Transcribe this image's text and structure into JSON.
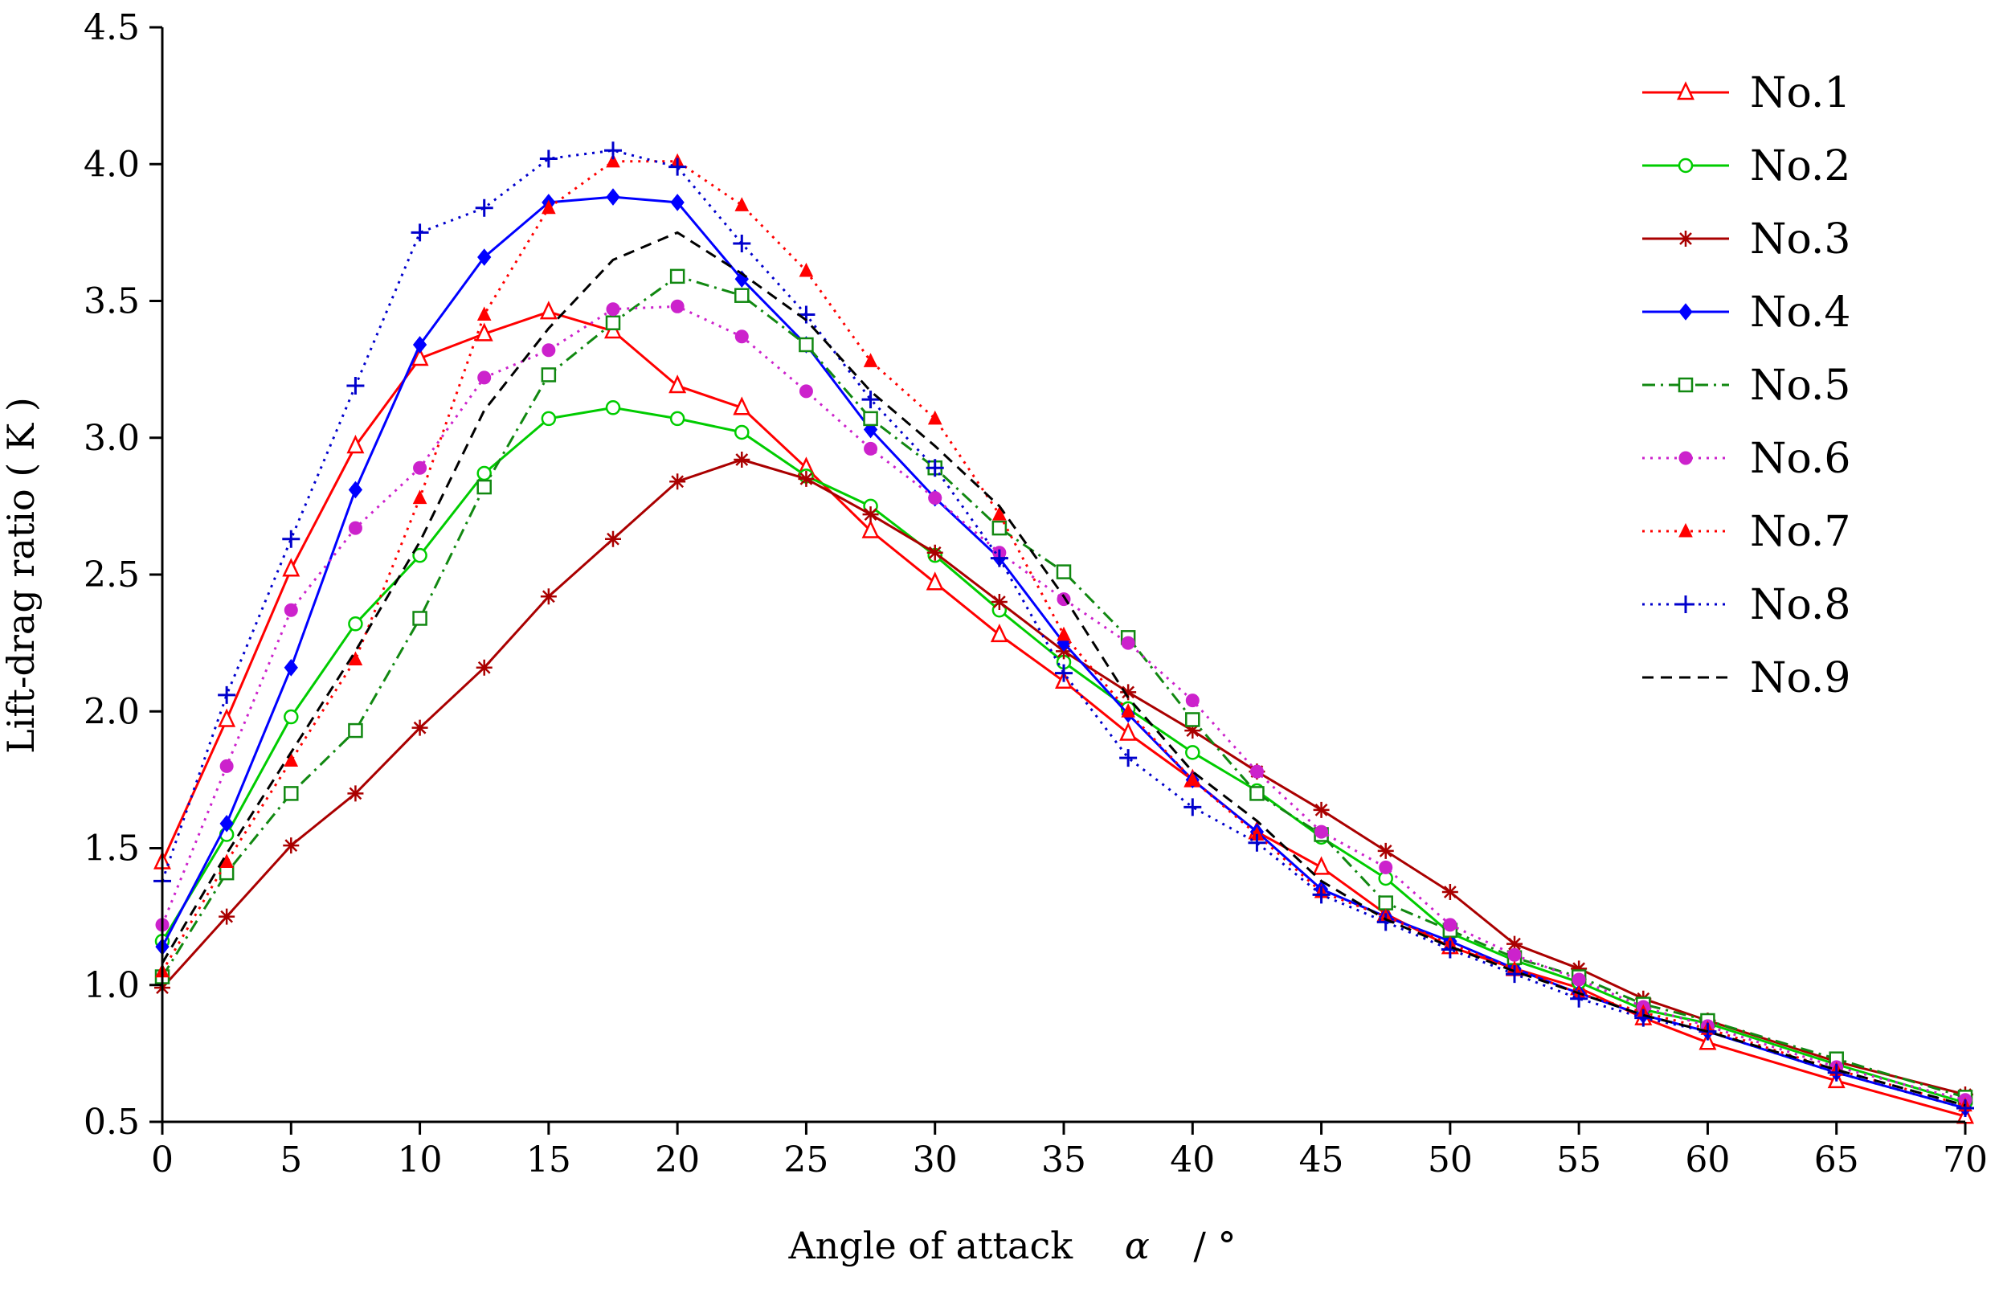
{
  "chart_data": {
    "type": "line",
    "title": "",
    "xlabel": "Angle of attack",
    "xlabel_symbol": "α",
    "xlabel_unit": "/ °",
    "ylabel": "Lift-drag ratio ( K )",
    "xlim": [
      0,
      70
    ],
    "ylim": [
      0.5,
      4.5
    ],
    "xticks": [
      0,
      5,
      10,
      15,
      20,
      25,
      30,
      35,
      40,
      45,
      50,
      55,
      60,
      65,
      70
    ],
    "xtick_labels": [
      "0",
      "5",
      "10",
      "15",
      "20",
      "25",
      "30",
      "35",
      "40",
      "45",
      "50",
      "55",
      "60",
      "65",
      "70"
    ],
    "yticks": [
      0.5,
      1.0,
      1.5,
      2.0,
      2.5,
      3.0,
      3.5,
      4.0,
      4.5
    ],
    "ytick_labels": [
      "0.5",
      "1.0",
      "1.5",
      "2.0",
      "2.5",
      "3.0",
      "3.5",
      "4.0",
      "4.5"
    ],
    "legend_position": "top-right",
    "x": [
      0,
      2.5,
      5,
      7.5,
      10,
      12.5,
      15,
      17.5,
      20,
      22.5,
      25,
      27.5,
      30,
      32.5,
      35,
      37.5,
      40,
      42.5,
      45,
      47.5,
      50,
      52.5,
      55,
      57.5,
      60,
      65,
      70
    ],
    "series": [
      {
        "name": "No.1",
        "color": "#ff0000",
        "dash": "solid",
        "marker": "triangle-open",
        "values": [
          1.45,
          1.97,
          2.52,
          2.97,
          3.29,
          3.38,
          3.46,
          3.39,
          3.19,
          3.11,
          2.89,
          2.66,
          2.47,
          2.28,
          2.11,
          1.92,
          1.75,
          1.56,
          1.43,
          1.26,
          1.14,
          1.06,
          0.99,
          0.88,
          0.79,
          0.65,
          0.52
        ]
      },
      {
        "name": "No.2",
        "color": "#00cc00",
        "dash": "solid",
        "marker": "circle-open",
        "values": [
          1.16,
          1.55,
          1.98,
          2.32,
          2.57,
          2.87,
          3.07,
          3.11,
          3.07,
          3.02,
          2.86,
          2.75,
          2.57,
          2.37,
          2.18,
          2.01,
          1.85,
          1.71,
          1.54,
          1.39,
          1.19,
          1.09,
          1.01,
          0.91,
          0.86,
          0.71,
          0.57
        ]
      },
      {
        "name": "No.3",
        "color": "#aa0000",
        "dash": "solid",
        "marker": "asterisk",
        "values": [
          0.99,
          1.25,
          1.51,
          1.7,
          1.94,
          2.16,
          2.42,
          2.63,
          2.84,
          2.92,
          2.85,
          2.72,
          2.58,
          2.4,
          2.22,
          2.07,
          1.93,
          1.78,
          1.64,
          1.49,
          1.34,
          1.15,
          1.06,
          0.95,
          0.87,
          0.72,
          0.6
        ]
      },
      {
        "name": "No.4",
        "color": "#0000ff",
        "dash": "solid",
        "marker": "diamond-filled",
        "values": [
          1.14,
          1.59,
          2.16,
          2.81,
          3.34,
          3.66,
          3.86,
          3.88,
          3.86,
          3.58,
          3.34,
          3.03,
          2.78,
          2.56,
          2.25,
          1.99,
          1.75,
          1.56,
          1.35,
          1.25,
          1.16,
          1.06,
          0.97,
          0.89,
          0.83,
          0.68,
          0.55
        ]
      },
      {
        "name": "No.5",
        "color": "#118811",
        "dash": "dashdot",
        "marker": "square-open",
        "values": [
          1.03,
          1.41,
          1.7,
          1.93,
          2.34,
          2.82,
          3.23,
          3.42,
          3.59,
          3.52,
          3.34,
          3.07,
          2.89,
          2.67,
          2.51,
          2.27,
          1.97,
          1.7,
          1.55,
          1.3,
          1.2,
          1.1,
          1.03,
          0.93,
          0.87,
          0.73,
          0.59
        ]
      },
      {
        "name": "No.6",
        "color": "#cc22cc",
        "dash": "dot",
        "marker": "circle-filled",
        "values": [
          1.22,
          1.8,
          2.37,
          2.67,
          2.89,
          3.22,
          3.32,
          3.47,
          3.48,
          3.37,
          3.17,
          2.96,
          2.78,
          2.58,
          2.41,
          2.25,
          2.04,
          1.78,
          1.56,
          1.43,
          1.22,
          1.11,
          1.02,
          0.92,
          0.85,
          0.7,
          0.58
        ]
      },
      {
        "name": "No.7",
        "color": "#ff0000",
        "dash": "dot",
        "marker": "triangle-filled",
        "values": [
          1.05,
          1.45,
          1.82,
          2.19,
          2.78,
          3.45,
          3.84,
          4.01,
          4.01,
          3.85,
          3.61,
          3.28,
          3.07,
          2.72,
          2.28,
          2.0,
          1.75,
          1.55,
          1.34,
          1.25,
          1.15,
          1.06,
          0.97,
          0.9,
          0.84,
          0.69,
          0.56
        ]
      },
      {
        "name": "No.8",
        "color": "#0000cc",
        "dash": "dot",
        "marker": "plus",
        "values": [
          1.38,
          2.06,
          2.63,
          3.19,
          3.75,
          3.84,
          4.02,
          4.05,
          3.99,
          3.71,
          3.45,
          3.14,
          2.89,
          2.56,
          2.14,
          1.83,
          1.65,
          1.52,
          1.33,
          1.23,
          1.13,
          1.04,
          0.95,
          0.88,
          0.83,
          0.68,
          0.55
        ]
      },
      {
        "name": "No.9",
        "color": "#000000",
        "dash": "dash",
        "marker": "none",
        "values": [
          1.08,
          1.48,
          1.85,
          2.22,
          2.62,
          3.1,
          3.4,
          3.65,
          3.75,
          3.6,
          3.43,
          3.17,
          2.97,
          2.75,
          2.42,
          2.05,
          1.78,
          1.6,
          1.38,
          1.24,
          1.14,
          1.05,
          0.97,
          0.89,
          0.83,
          0.69,
          0.56
        ]
      }
    ]
  }
}
